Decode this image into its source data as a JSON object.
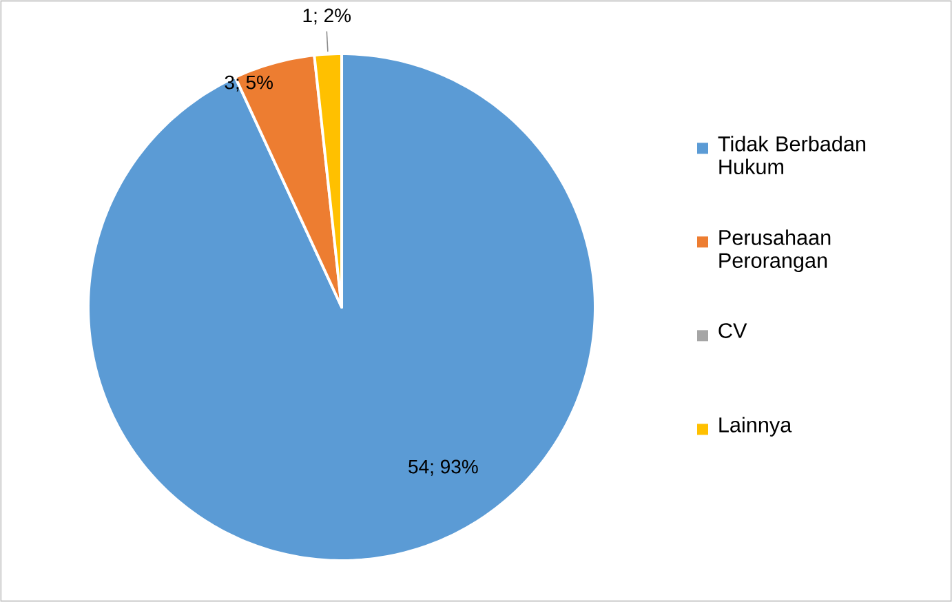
{
  "chart_data": {
    "type": "pie",
    "categories": [
      "Tidak Berbadan Hukum",
      "Perusahaan Perorangan",
      "CV",
      "Lainnya"
    ],
    "values": [
      54,
      3,
      0,
      1
    ],
    "colors": [
      "#5b9bd5",
      "#ed7d31",
      "#a5a5a5",
      "#ffc000"
    ],
    "value_labels": [
      "54; 93%",
      "3; 5%",
      null,
      "1; 2%"
    ],
    "legend": "right"
  }
}
